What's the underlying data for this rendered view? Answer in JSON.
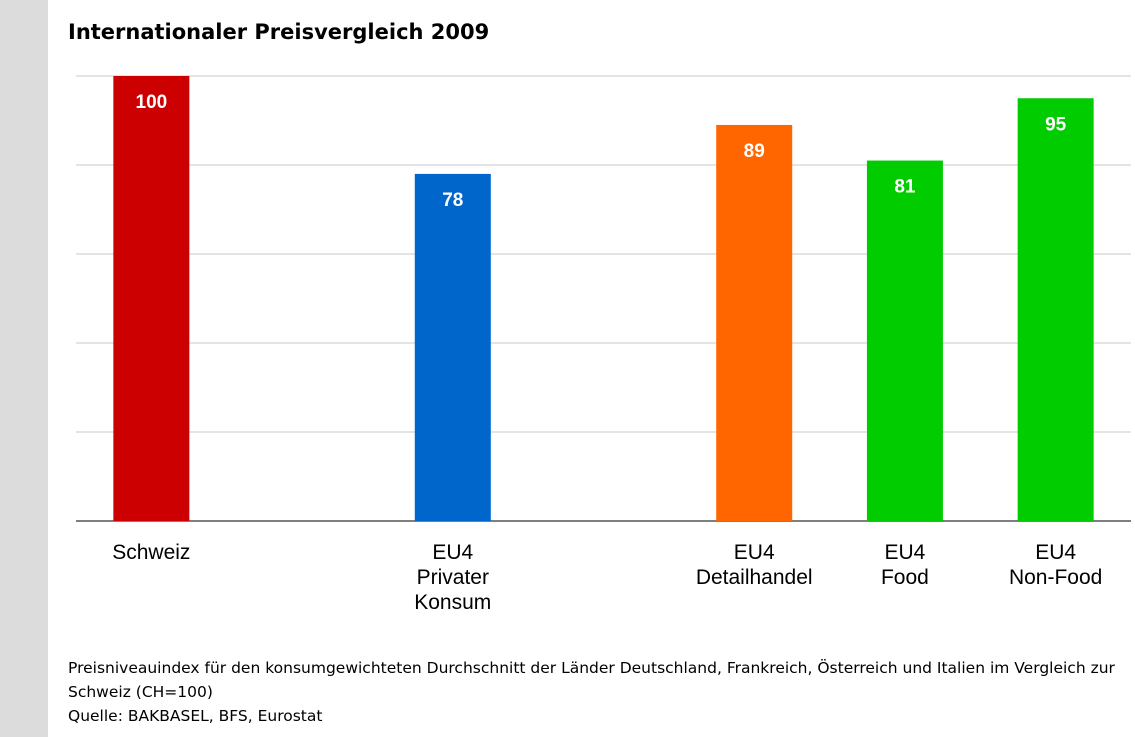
{
  "chart_data": {
    "type": "bar",
    "title": "Internationaler Preisvergleich 2009",
    "categories": [
      "Schweiz",
      null,
      "EU4\nPrivater Konsum",
      null,
      "EU4\nDetailhandel",
      "EU4\nFood",
      "EU4\nNon-Food"
    ],
    "values": [
      100,
      null,
      78,
      null,
      89,
      81,
      95
    ],
    "colors": [
      "#cc0000",
      null,
      "#0066cc",
      null,
      "#ff6600",
      "#00cc00",
      "#00cc00"
    ],
    "ylim": [
      0,
      100
    ],
    "yticks": [
      0,
      20,
      40,
      60,
      80,
      100
    ],
    "grid": true,
    "note": "Preisniveauindex für den konsumgewichteten Durchschnitt der Länder Deutschland, Frankreich, Österreich und Italien im Vergleich zur Schweiz (CH=100)",
    "source": "Quelle: BAKBASEL, BFS, Eurostat"
  }
}
